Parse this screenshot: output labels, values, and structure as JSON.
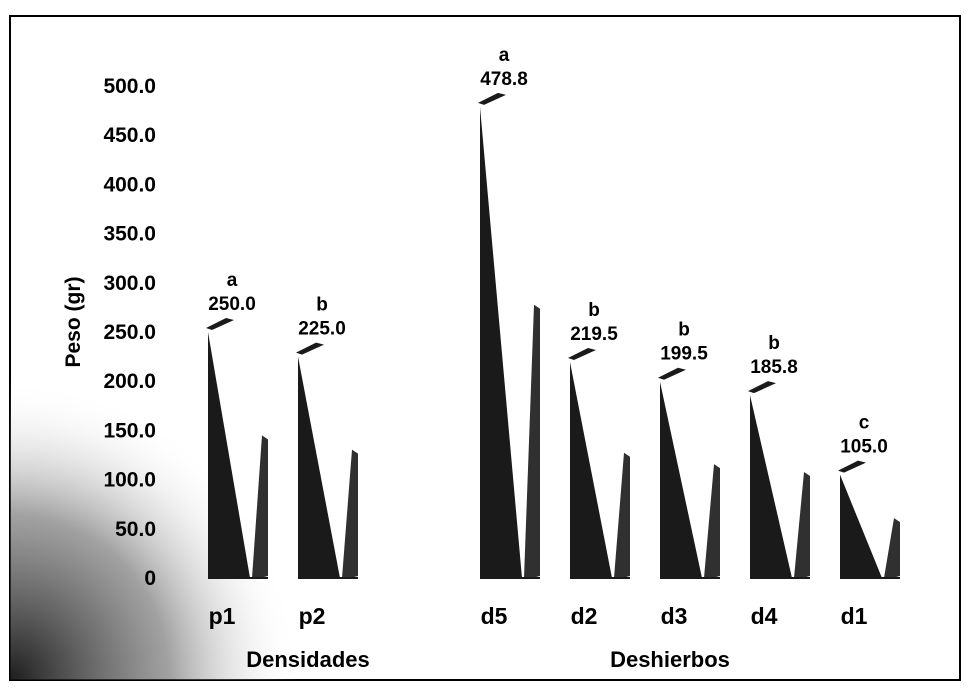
{
  "chart_data": {
    "type": "bar",
    "ylabel": "Peso (gr)",
    "ylim": [
      0,
      500
    ],
    "y_ticks": [
      "500.0",
      "450.0",
      "400.0",
      "350.0",
      "300.0",
      "250.0",
      "200.0",
      "150.0",
      "100.0",
      "50.0",
      "0"
    ],
    "groups": [
      {
        "label": "Densidades",
        "categories": [
          "p1",
          "p2"
        ]
      },
      {
        "label": "Deshierbos",
        "categories": [
          "d5",
          "d2",
          "d3",
          "d4",
          "d1"
        ]
      }
    ],
    "categories": [
      "p1",
      "p2",
      "d5",
      "d2",
      "d3",
      "d4",
      "d1"
    ],
    "values": [
      250.0,
      225.0,
      478.8,
      219.5,
      199.5,
      185.8,
      105.0
    ],
    "value_labels": [
      "250.0",
      "225.0",
      "478.8",
      "219.5",
      "199.5",
      "185.8",
      "105.0"
    ],
    "significance_letters": [
      "a",
      "b",
      "a",
      "b",
      "b",
      "b",
      "c"
    ],
    "grid": false,
    "legend": "none",
    "colors": {
      "bar": "#1a1a1a",
      "text": "#000000",
      "background": "#ffffff"
    }
  }
}
